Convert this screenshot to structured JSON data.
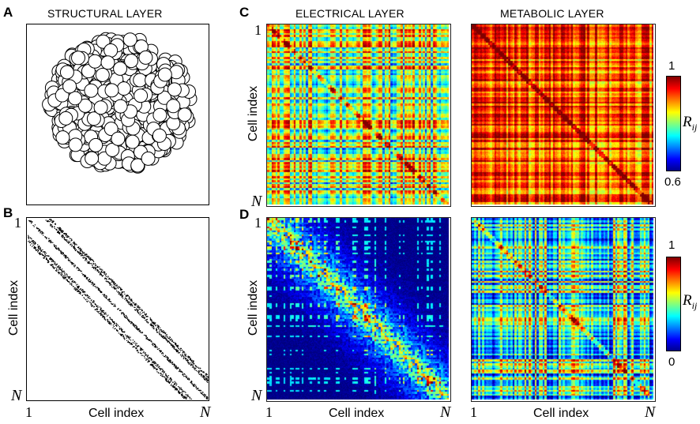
{
  "panels": {
    "A": {
      "letter": "A",
      "title": "STRUCTURAL LAYER"
    },
    "B": {
      "letter": "B",
      "xlabel": "Cell index",
      "ylabel": "Cell index",
      "tick_start": "1",
      "tick_end": "N"
    },
    "C": {
      "letter": "C",
      "title_left": "ELECTRICAL LAYER",
      "title_right": "METABOLIC LAYER",
      "ylabel": "Cell index",
      "tick_start": "1",
      "tick_end": "N",
      "colorbar": {
        "max": "1",
        "min": "0.6",
        "label": "R",
        "label_sub": "ij"
      }
    },
    "D": {
      "letter": "D",
      "xlabel_left": "Cell index",
      "xlabel_right": "Cell index",
      "ylabel": "Cell index",
      "tick_start": "1",
      "tick_end": "N",
      "colorbar": {
        "max": "1",
        "min": "0",
        "label": "R",
        "label_sub": "ij"
      }
    }
  },
  "colors": {
    "jet_dark_blue": "#00008f",
    "jet_blue": "#0000ff",
    "jet_cyan": "#00ffff",
    "jet_yellow": "#ffff00",
    "jet_red": "#ff0000",
    "jet_dark_red": "#800000"
  }
}
